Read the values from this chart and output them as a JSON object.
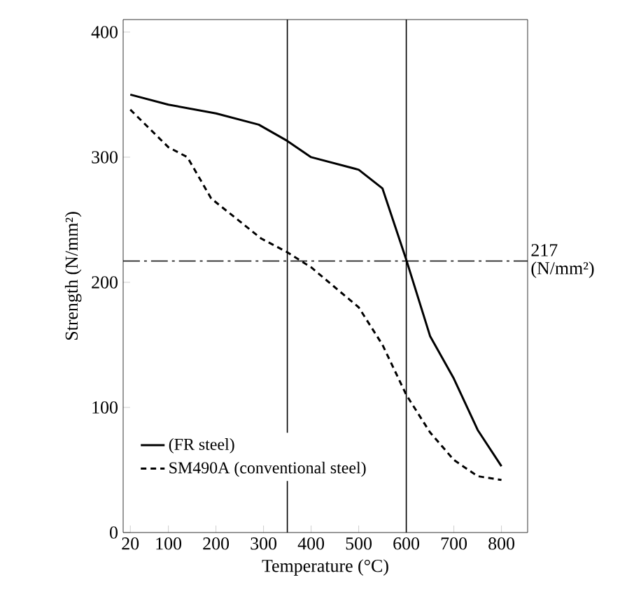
{
  "chart_data": {
    "type": "line",
    "xlabel": "Temperature (°C)",
    "ylabel": "Strength (N/mm²)",
    "xlim": [
      5,
      855
    ],
    "ylim": [
      0,
      410
    ],
    "xticks": [
      20,
      100,
      200,
      300,
      400,
      500,
      600,
      700,
      800
    ],
    "yticks": [
      0,
      100,
      200,
      300,
      400
    ],
    "grid": false,
    "legend": "bottom left",
    "marker": "none",
    "series": [
      {
        "name": "(FR steel)",
        "color": "#000000",
        "line_style": "solid",
        "x": [
          20,
          100,
          200,
          290,
          350,
          400,
          500,
          550,
          600,
          650,
          700,
          750,
          800
        ],
        "values": [
          350,
          342,
          335,
          326,
          313,
          300,
          290,
          275,
          218,
          157,
          123,
          82,
          53
        ]
      },
      {
        "name": "SM490A (conventional steel)",
        "color": "#000000",
        "line_style": "dashed",
        "x": [
          20,
          100,
          140,
          190,
          295,
          350,
          400,
          500,
          550,
          600,
          650,
          700,
          750,
          800
        ],
        "values": [
          338,
          308,
          300,
          267,
          235,
          224,
          212,
          180,
          150,
          110,
          80,
          58,
          45,
          42
        ]
      }
    ],
    "ref_lines": [
      {
        "axis": "x",
        "value": 350,
        "line_style": "solid",
        "color": "#000000"
      },
      {
        "axis": "x",
        "value": 600,
        "line_style": "solid",
        "color": "#000000"
      },
      {
        "axis": "y",
        "value": 217,
        "label": "217 (N/mm²)",
        "line_style": "dashdot",
        "color": "#000000"
      }
    ]
  }
}
